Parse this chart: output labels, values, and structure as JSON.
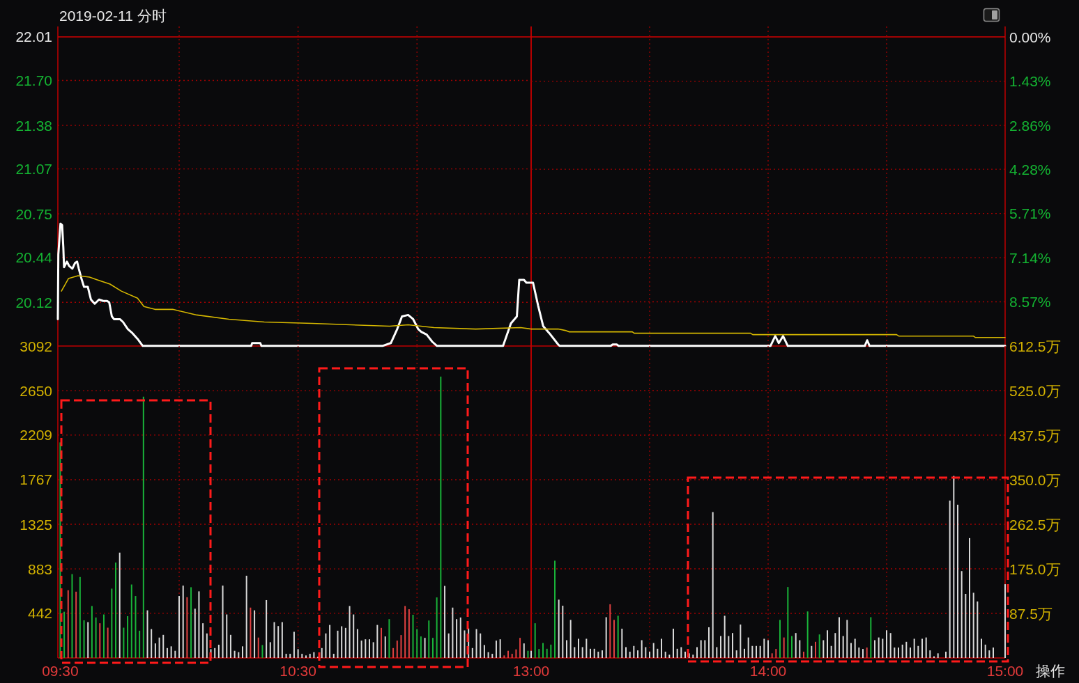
{
  "chart_data": [
    {
      "type": "line",
      "title": "2019-02-11 分时",
      "xlim": [
        9.49,
        11.48
      ],
      "xticks": [
        {
          "value": 9.5,
          "label": null
        },
        {
          "value": 10,
          "label": null
        },
        {
          "value": 10.5,
          "label": null
        },
        {
          "value": 11,
          "label": null
        }
      ],
      "tick_labels": "y",
      "ylim": [
        19.809,
        22.084
      ],
      "yticks": [
        22.01,
        {
          "value": 21.7,
          "label": "21.70"
        },
        21.38,
        21.07,
        20.75,
        20.44,
        20.12
      ],
      "grid": true,
      "ref_lines": [
        {
          "axis": "y",
          "value": 22.01,
          "color": "#d40000"
        }
      ],
      "series": [
        {
          "color": "#ffffff",
          "x": [
            9.49,
            9.492,
            9.501,
            9.508,
            9.513,
            9.516,
            9.528,
            9.537,
            9.551,
            9.562,
            9.571,
            9.578,
            9.589,
            9.6,
            9.616,
            9.629,
            9.645,
            9.663,
            9.681,
            9.697,
            9.706,
            9.717,
            9.726,
            9.751,
            9.764,
            9.784,
            9.804,
            9.825,
            9.847,
            10.303,
            10.307,
            10.341,
            10.346,
            10.855,
            10.89,
            10.917,
            10.937,
            10.963,
            10.984,
            11.005,
            11.018,
            11.041,
            11.064,
            11.084,
            11.362,
            11.395,
            11.42,
            11.43,
            11.45,
            11.46,
            11.48
          ],
          "values": [
            20.0,
            20.46,
            20.68,
            20.67,
            20.51,
            20.37,
            20.41,
            20.38,
            20.36,
            20.4,
            20.41,
            20.36,
            20.29,
            20.23,
            20.23,
            20.14,
            20.11,
            20.14,
            20.13,
            20.13,
            20.12,
            20.02,
            20.0,
            20.0,
            19.98,
            19.93,
            19.9,
            19.86,
            19.81,
            19.81,
            19.83,
            19.83,
            19.81,
            19.81,
            19.83,
            19.93,
            20.02,
            20.03,
            20.0,
            19.93,
            19.91,
            19.89,
            19.84,
            19.81,
            19.81,
            19.97,
            20.02,
            20.28,
            20.28,
            20.26,
            20.26
          ]
        },
        {
          "color": "#d6b800",
          "x": [
            9.505,
            9.535,
            9.575,
            9.623,
            9.656,
            9.709,
            9.757,
            9.825,
            9.852,
            9.898,
            9.973,
            10.074,
            10.209,
            10.358,
            10.56,
            10.721,
            10.885,
            10.963,
            11.071,
            11.247,
            11.436,
            11.48
          ],
          "values": [
            20.2,
            20.29,
            20.31,
            20.3,
            20.28,
            20.25,
            20.2,
            20.15,
            20.09,
            20.07,
            20.07,
            20.03,
            20.0,
            19.98,
            19.97,
            19.96,
            19.95,
            19.96,
            19.94,
            19.93,
            19.94,
            19.93
          ]
        }
      ]
    },
    {
      "type": "line",
      "xlim": [
        13,
        15
      ],
      "xticks": [
        {
          "value": 13,
          "label": null
        },
        {
          "value": 13.5,
          "label": null
        },
        {
          "value": 14,
          "label": null
        },
        {
          "value": 14.5,
          "label": null
        },
        {
          "value": 15,
          "label": null
        }
      ],
      "tick_labels": "y",
      "ylim": [
        19.809,
        22.084
      ],
      "y2lim": [
        10,
        -0.34
      ],
      "y2ticks": [
        {
          "value": 0,
          "label": "0.00%"
        },
        {
          "value": 1.43,
          "label": "1.43%"
        },
        {
          "value": 2.86,
          "label": "2.86%"
        },
        {
          "value": 4.28,
          "label": "4.28%"
        },
        {
          "value": 5.71,
          "label": "5.71%"
        },
        {
          "value": 7.14,
          "label": "7.14%"
        },
        {
          "value": 8.57,
          "label": "8.57%"
        }
      ],
      "grid": true,
      "ref_lines": [
        {
          "axis": "y",
          "value": 22.01,
          "color": "#d40000"
        }
      ],
      "series": [
        {
          "color": "#ffffff",
          "x": [
            13,
            13.008,
            13.029,
            13.051,
            13.077,
            13.114,
            13.12,
            13.336,
            13.344,
            13.361,
            13.369,
            14.01,
            14.03,
            14.045,
            14.063,
            14.083,
            14.408,
            14.418,
            14.428,
            15
          ],
          "values": [
            20.26,
            20.26,
            20.1,
            19.95,
            19.9,
            19.82,
            19.81,
            19.81,
            19.82,
            19.82,
            19.81,
            19.81,
            19.88,
            19.83,
            19.88,
            19.81,
            19.81,
            19.85,
            19.81,
            19.81
          ]
        },
        {
          "color": "#d6b800",
          "x": [
            13,
            13.114,
            13.144,
            13.161,
            13.427,
            13.435,
            13.926,
            13.935,
            14.542,
            14.551,
            14.866,
            14.874,
            15
          ],
          "values": [
            19.93,
            19.93,
            19.92,
            19.91,
            19.91,
            19.9,
            19.9,
            19.89,
            19.89,
            19.88,
            19.88,
            19.87,
            19.87
          ]
        }
      ]
    },
    {
      "type": "bar",
      "xlim": [
        9.49,
        11.48
      ],
      "xticks": [
        {
          "value": 9.5,
          "label": "09:30"
        },
        {
          "value": 10,
          "label": null
        },
        {
          "value": 10.5,
          "label": "10:30"
        },
        {
          "value": 11,
          "label": null
        }
      ],
      "ylim": [
        0,
        3092
      ],
      "yticks": [
        442,
        883,
        1325,
        1767,
        2209,
        2650,
        3092
      ],
      "grid": true,
      "x": [
        9.5,
        9.5167,
        9.5333,
        9.55,
        9.5667,
        9.5833,
        9.6,
        9.6167,
        9.6333,
        9.65,
        9.6667,
        9.6833,
        9.7,
        9.7167,
        9.7333,
        9.75,
        9.7667,
        9.7833,
        9.8,
        9.8167,
        9.8333,
        9.85,
        9.8667,
        9.8833,
        9.9,
        9.9167,
        9.9333,
        9.95,
        9.9667,
        9.9833,
        10,
        10.0167,
        10.0333,
        10.05,
        10.0667,
        10.0833,
        10.1,
        10.1167,
        10.1333,
        10.15,
        10.1667,
        10.1833,
        10.2,
        10.2167,
        10.2333,
        10.25,
        10.2667,
        10.2833,
        10.3,
        10.3167,
        10.3333,
        10.35,
        10.3667,
        10.3833,
        10.4,
        10.4167,
        10.4333,
        10.45,
        10.4667,
        10.4833,
        10.5,
        10.5167,
        10.5333,
        10.55,
        10.5667,
        10.5833,
        10.6,
        10.6167,
        10.6333,
        10.65,
        10.6667,
        10.6833,
        10.7,
        10.7167,
        10.7333,
        10.75,
        10.7667,
        10.7833,
        10.8,
        10.8167,
        10.8333,
        10.85,
        10.8667,
        10.8833,
        10.9,
        10.9167,
        10.9333,
        10.95,
        10.9667,
        10.9833,
        11,
        11.0167,
        11.0333,
        11.05,
        11.0667,
        11.0833,
        11.1,
        11.1167,
        11.1333,
        11.15,
        11.1667,
        11.1833,
        11.2,
        11.2167,
        11.2333,
        11.25,
        11.2667,
        11.2833,
        11.3,
        11.3167,
        11.3333,
        11.35,
        11.3667,
        11.3833,
        11.4,
        11.4167,
        11.4333,
        11.45,
        11.4667
      ],
      "values": [
        2137,
        458,
        671,
        831,
        657,
        802,
        373,
        355,
        515,
        401,
        344,
        431,
        300,
        687,
        946,
        1044,
        300,
        414,
        728,
        614,
        270,
        2590,
        472,
        286,
        144,
        202,
        229,
        98,
        115,
        71,
        614,
        717,
        602,
        701,
        488,
        660,
        344,
        243,
        87,
        98,
        131,
        717,
        431,
        229,
        71,
        57,
        115,
        815,
        499,
        472,
        202,
        128,
        573,
        156,
        355,
        316,
        355,
        41,
        41,
        259,
        87,
        41,
        25,
        41,
        57,
        11,
        98,
        243,
        327,
        41,
        270,
        314,
        298,
        515,
        431,
        286,
        172,
        185,
        185,
        156,
        327,
        298,
        213,
        385,
        98,
        172,
        227,
        515,
        483,
        428,
        286,
        213,
        199,
        371,
        199,
        600,
        2789,
        714,
        243,
        499,
        385,
        401,
        273,
        293,
        98,
        286,
        243,
        128,
        57,
        41,
        172,
        185,
        25,
        71,
        41,
        85,
        199,
        144,
        71
      ],
      "colors": [
        "#19b339",
        "#19b339",
        "#e04141",
        "#19b339",
        "#e04141",
        "#19b339",
        "#19b339",
        "#d9d9d9",
        "#19b339",
        "#19b339",
        "#e04141",
        "#19b339",
        "#e04141",
        "#19b339",
        "#19b339",
        "#d9d9d9",
        "#19b339",
        "#19b339",
        "#19b339",
        "#19b339",
        "#19b339",
        "#19b339",
        "#d9d9d9",
        "#d9d9d9",
        "#d9d9d9",
        "#d9d9d9",
        "#d9d9d9",
        "#d9d9d9",
        "#d9d9d9",
        "#d9d9d9",
        "#d9d9d9",
        "#d9d9d9",
        "#e04141",
        "#19b339",
        "#d9d9d9",
        "#d9d9d9",
        "#d9d9d9",
        "#d9d9d9",
        "#d9d9d9",
        "#d9d9d9",
        "#d9d9d9",
        "#d9d9d9",
        "#d9d9d9",
        "#d9d9d9",
        "#d9d9d9",
        "#d9d9d9",
        "#d9d9d9",
        "#d9d9d9",
        "#e04141",
        "#d9d9d9",
        "#e04141",
        "#19b339",
        "#d9d9d9",
        "#d9d9d9",
        "#d9d9d9",
        "#d9d9d9",
        "#d9d9d9",
        "#d9d9d9",
        "#d9d9d9",
        "#d9d9d9",
        "#d9d9d9",
        "#d9d9d9",
        "#d9d9d9",
        "#d9d9d9",
        "#d9d9d9",
        "#d9d9d9",
        "#d9d9d9",
        "#d9d9d9",
        "#d9d9d9",
        "#d9d9d9",
        "#d9d9d9",
        "#d9d9d9",
        "#d9d9d9",
        "#d9d9d9",
        "#d9d9d9",
        "#d9d9d9",
        "#d9d9d9",
        "#d9d9d9",
        "#d9d9d9",
        "#d9d9d9",
        "#d9d9d9",
        "#e04141",
        "#d9d9d9",
        "#19b339",
        "#e04141",
        "#e04141",
        "#e04141",
        "#e04141",
        "#e04141",
        "#19b339",
        "#19b339",
        "#19b339",
        "#d9d9d9",
        "#19b339",
        "#19b339",
        "#19b339",
        "#19b339",
        "#d9d9d9",
        "#d9d9d9",
        "#d9d9d9",
        "#d9d9d9",
        "#d9d9d9",
        "#d9d9d9",
        "#d9d9d9",
        "#d9d9d9",
        "#d9d9d9",
        "#d9d9d9",
        "#d9d9d9",
        "#d9d9d9",
        "#d9d9d9",
        "#d9d9d9",
        "#d9d9d9",
        "#e04141",
        "#e04141",
        "#e04141",
        "#e04141",
        "#e04141",
        "#d9d9d9",
        "#19b339"
      ]
    },
    {
      "type": "bar",
      "xlim": [
        13,
        15
      ],
      "xticks": [
        {
          "value": 13,
          "label": "13:00"
        },
        {
          "value": 13.5,
          "label": null
        },
        {
          "value": 14,
          "label": "14:00"
        },
        {
          "value": 14.5,
          "label": null
        },
        {
          "value": 15,
          "label": "15:00"
        }
      ],
      "ylim": [
        0,
        3092
      ],
      "y2lim": [
        0,
        612.5
      ],
      "y2ticks": [
        {
          "value": 87.5,
          "label": "87.5万"
        },
        {
          "value": 175,
          "label": "175.0万"
        },
        {
          "value": 262.5,
          "label": "262.5万"
        },
        {
          "value": 350,
          "label": "350.0万"
        },
        {
          "value": 437.5,
          "label": "437.5万"
        },
        {
          "value": 525,
          "label": "525.0万"
        },
        {
          "value": 612.5,
          "label": "612.5万"
        }
      ],
      "grid": true,
      "annotations": [
        "操作"
      ],
      "x": [
        13,
        13.0167,
        13.0333,
        13.05,
        13.0667,
        13.0833,
        13.1,
        13.1167,
        13.1333,
        13.15,
        13.1667,
        13.1833,
        13.2,
        13.2167,
        13.2333,
        13.25,
        13.2667,
        13.2833,
        13.3,
        13.3167,
        13.3333,
        13.35,
        13.3667,
        13.3833,
        13.4,
        13.4167,
        13.4333,
        13.45,
        13.4667,
        13.4833,
        13.5,
        13.5167,
        13.5333,
        13.55,
        13.5667,
        13.5833,
        13.6,
        13.6167,
        13.6333,
        13.65,
        13.6667,
        13.6833,
        13.7,
        13.7167,
        13.7333,
        13.75,
        13.7667,
        13.7833,
        13.8,
        13.8167,
        13.8333,
        13.85,
        13.8667,
        13.8833,
        13.9,
        13.9167,
        13.9333,
        13.95,
        13.9667,
        13.9833,
        14,
        14.0167,
        14.0333,
        14.05,
        14.0667,
        14.0833,
        14.1,
        14.1167,
        14.1333,
        14.15,
        14.1667,
        14.1833,
        14.2,
        14.2167,
        14.2333,
        14.25,
        14.2667,
        14.2833,
        14.3,
        14.3167,
        14.3333,
        14.35,
        14.3667,
        14.3833,
        14.4,
        14.4167,
        14.4333,
        14.45,
        14.4667,
        14.4833,
        14.5,
        14.5167,
        14.5333,
        14.55,
        14.5667,
        14.5833,
        14.6,
        14.6167,
        14.6333,
        14.65,
        14.6667,
        14.6833,
        14.7,
        14.7167,
        14.75,
        14.7667,
        14.7833,
        14.8,
        14.8167,
        14.8333,
        14.85,
        14.8667,
        14.8833,
        14.9,
        14.9167,
        14.9333,
        14.95,
        15
      ],
      "values": [
        71,
        344,
        89,
        148,
        91,
        132,
        964,
        578,
        518,
        176,
        377,
        107,
        190,
        107,
        190,
        91,
        91,
        62,
        75,
        404,
        532,
        377,
        418,
        290,
        107,
        62,
        119,
        75,
        176,
        107,
        62,
        148,
        91,
        190,
        62,
        32,
        290,
        91,
        107,
        62,
        46,
        32,
        107,
        176,
        176,
        304,
        1446,
        107,
        217,
        418,
        217,
        247,
        75,
        331,
        91,
        203,
        119,
        119,
        119,
        190,
        176,
        46,
        89,
        377,
        203,
        703,
        217,
        247,
        176,
        62,
        461,
        119,
        160,
        233,
        176,
        274,
        119,
        247,
        404,
        217,
        377,
        148,
        190,
        103,
        89,
        103,
        404,
        176,
        203,
        190,
        274,
        247,
        103,
        103,
        132,
        160,
        103,
        190,
        119,
        190,
        203,
        75,
        16,
        46,
        62,
        1560,
        1804,
        1519,
        861,
        635,
        1188,
        646,
        560,
        190,
        132,
        75,
        103,
        731
      ],
      "colors": [
        "#d9d9d9",
        "#19b339",
        "#19b339",
        "#19b339",
        "#19b339",
        "#19b339",
        "#19b339",
        "#d9d9d9",
        "#d9d9d9",
        "#d9d9d9",
        "#d9d9d9",
        "#d9d9d9",
        "#d9d9d9",
        "#d9d9d9",
        "#d9d9d9",
        "#d9d9d9",
        "#d9d9d9",
        "#d9d9d9",
        "#d9d9d9",
        "#d9d9d9",
        "#e04141",
        "#e04141",
        "#19b339",
        "#d9d9d9",
        "#d9d9d9",
        "#d9d9d9",
        "#d9d9d9",
        "#d9d9d9",
        "#d9d9d9",
        "#d9d9d9",
        "#d9d9d9",
        "#d9d9d9",
        "#d9d9d9",
        "#d9d9d9",
        "#d9d9d9",
        "#d9d9d9",
        "#d9d9d9",
        "#d9d9d9",
        "#d9d9d9",
        "#d9d9d9",
        "#d9d9d9",
        "#d9d9d9",
        "#d9d9d9",
        "#d9d9d9",
        "#d9d9d9",
        "#d9d9d9",
        "#d9d9d9",
        "#d9d9d9",
        "#d9d9d9",
        "#d9d9d9",
        "#d9d9d9",
        "#d9d9d9",
        "#d9d9d9",
        "#d9d9d9",
        "#d9d9d9",
        "#d9d9d9",
        "#d9d9d9",
        "#d9d9d9",
        "#d9d9d9",
        "#d9d9d9",
        "#d9d9d9",
        "#e04141",
        "#e04141",
        "#19b339",
        "#e04141",
        "#19b339",
        "#19b339",
        "#d9d9d9",
        "#d9d9d9",
        "#e04141",
        "#19b339",
        "#d9d9d9",
        "#e04141",
        "#19b339",
        "#d9d9d9",
        "#d9d9d9",
        "#d9d9d9",
        "#d9d9d9",
        "#d9d9d9",
        "#d9d9d9",
        "#d9d9d9",
        "#d9d9d9",
        "#d9d9d9",
        "#d9d9d9",
        "#d9d9d9",
        "#e04141",
        "#19b339",
        "#d9d9d9",
        "#d9d9d9",
        "#d9d9d9",
        "#d9d9d9",
        "#d9d9d9",
        "#d9d9d9",
        "#d9d9d9",
        "#d9d9d9",
        "#d9d9d9",
        "#d9d9d9",
        "#d9d9d9",
        "#d9d9d9",
        "#d9d9d9",
        "#d9d9d9",
        "#d9d9d9",
        "#d9d9d9",
        "#d9d9d9",
        "#d9d9d9",
        "#d9d9d9",
        "#d9d9d9",
        "#d9d9d9",
        "#d9d9d9",
        "#d9d9d9",
        "#d9d9d9",
        "#d9d9d9",
        "#d9d9d9",
        "#d9d9d9",
        "#d9d9d9",
        "#d9d9d9",
        "#d9d9d9",
        "#d9d9d9"
      ]
    }
  ]
}
